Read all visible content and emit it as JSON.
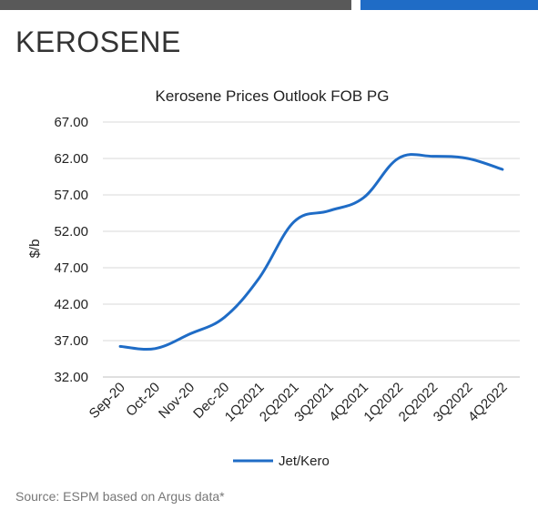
{
  "header": {
    "title": "KEROSENE"
  },
  "colors": {
    "accent_dark": "#595959",
    "accent_blue": "#1f6cc6",
    "series": "#1f6cc6",
    "grid": "#d9d9d9"
  },
  "chart_data": {
    "type": "line",
    "title": "Kerosene Prices Outlook FOB PG",
    "ylabel": "$/b",
    "xlabel": "",
    "categories": [
      "Sep-20",
      "Oct-20",
      "Nov-20",
      "Dec-20",
      "1Q2021",
      "2Q2021",
      "3Q2021",
      "4Q2021",
      "1Q2022",
      "2Q2022",
      "3Q2022",
      "4Q2022"
    ],
    "y_ticks": [
      "32.00",
      "37.00",
      "42.00",
      "47.00",
      "52.00",
      "57.00",
      "62.00",
      "67.00"
    ],
    "ylim": [
      32,
      67
    ],
    "grid": true,
    "legend_position": "bottom",
    "series": [
      {
        "name": "Jet/Kero",
        "values": [
          36.2,
          35.9,
          37.9,
          40.2,
          45.6,
          53.3,
          54.8,
          56.6,
          62.0,
          62.3,
          62.0,
          60.5
        ]
      }
    ]
  },
  "footer": {
    "source": "Source: ESPM based on Argus data*"
  }
}
